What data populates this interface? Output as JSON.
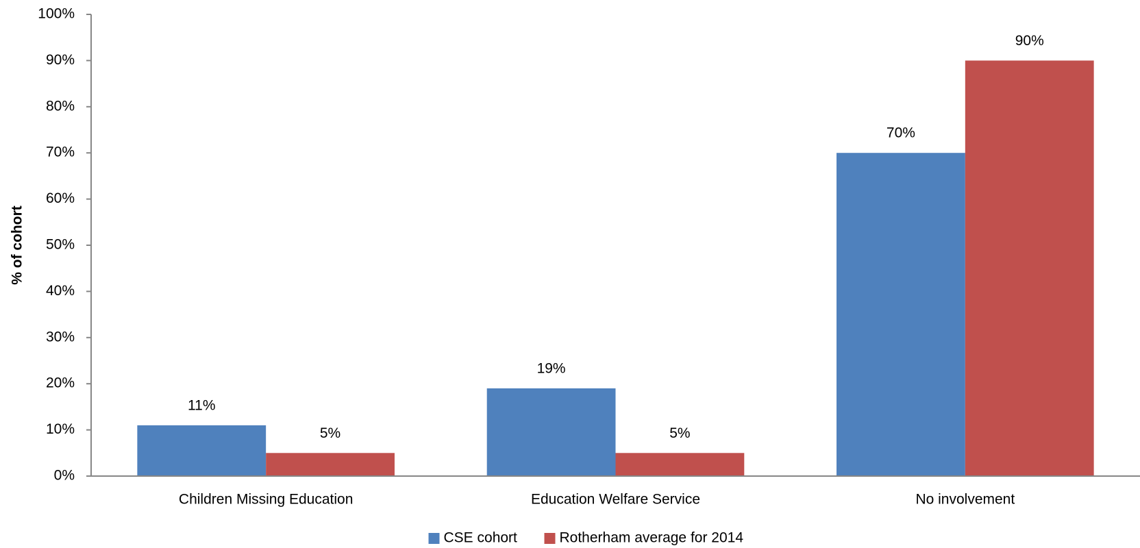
{
  "chart_data": {
    "type": "bar",
    "y_label": "% of cohort",
    "categories": [
      "Children Missing Education",
      "Education Welfare Service",
      "No involvement"
    ],
    "series": [
      {
        "name": "CSE cohort",
        "color": "#4f81bd",
        "values": [
          11,
          19,
          70
        ],
        "value_labels": [
          "11%",
          "19%",
          "70%"
        ]
      },
      {
        "name": "Rotherham average for 2014",
        "color": "#c0504d",
        "values": [
          5,
          5,
          90
        ],
        "value_labels": [
          "5%",
          "5%",
          "90%"
        ]
      }
    ],
    "ylim": [
      0,
      100
    ],
    "yticks": [
      {
        "value": 0,
        "label": "0%"
      },
      {
        "value": 10,
        "label": "10%"
      },
      {
        "value": 20,
        "label": "20%"
      },
      {
        "value": 30,
        "label": "30%"
      },
      {
        "value": 40,
        "label": "40%"
      },
      {
        "value": 50,
        "label": "50%"
      },
      {
        "value": 60,
        "label": "60%"
      },
      {
        "value": 70,
        "label": "70%"
      },
      {
        "value": 80,
        "label": "80%"
      },
      {
        "value": 90,
        "label": "90%"
      },
      {
        "value": 100,
        "label": "100%"
      }
    ],
    "grid": false,
    "legend": "bottom"
  }
}
